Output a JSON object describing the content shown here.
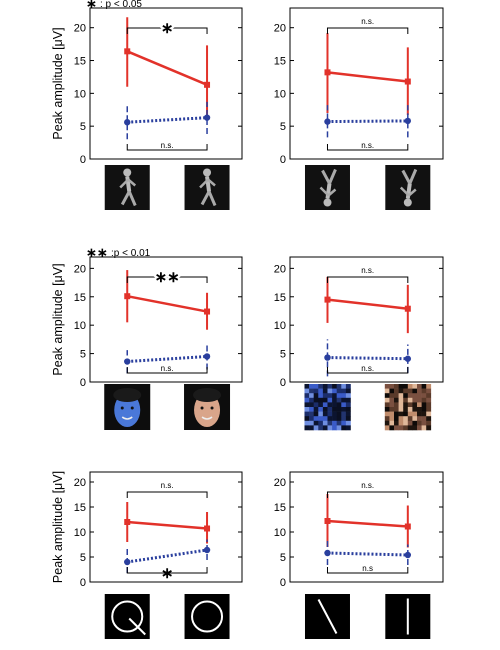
{
  "chart_data": [
    {
      "type": "line",
      "panel": "A-left",
      "ylabel": "Peak amplitude [μV]",
      "ylim": [
        0,
        23
      ],
      "yticks": [
        0,
        5,
        10,
        15,
        20
      ],
      "legend_note": ": p < 0.05",
      "legend_stars": "∗",
      "series": [
        {
          "style": "solid red",
          "values": [
            16.4,
            11.3
          ],
          "err_low": [
            11.0,
            6.5
          ],
          "err_high": [
            21.6,
            17.3
          ]
        },
        {
          "style": "dotted blue",
          "values": [
            5.6,
            6.3
          ],
          "err_low": [
            3.0,
            3.8
          ],
          "err_high": [
            8.2,
            8.7
          ]
        }
      ],
      "sig_top": "∗",
      "sig_bottom": "n.s.",
      "stimuli": [
        "upright-body-1",
        "upright-body-2"
      ]
    },
    {
      "type": "line",
      "panel": "A-right",
      "ylim": [
        0,
        23
      ],
      "yticks": [
        0,
        5,
        10,
        15,
        20
      ],
      "series": [
        {
          "style": "solid red",
          "values": [
            13.2,
            11.8
          ],
          "err_low": [
            7.0,
            6.7
          ],
          "err_high": [
            19.2,
            17.0
          ]
        },
        {
          "style": "dotted blue",
          "values": [
            5.7,
            5.8
          ],
          "err_low": [
            3.3,
            3.3
          ],
          "err_high": [
            8.2,
            8.2
          ]
        }
      ],
      "sig_top": "n.s.",
      "sig_bottom": "n.s.",
      "stimuli": [
        "inverted-body-1",
        "inverted-body-2"
      ]
    },
    {
      "type": "line",
      "panel": "B-left",
      "ylabel": "Peak amplitude [μV]",
      "ylim": [
        0,
        22
      ],
      "yticks": [
        0,
        5,
        10,
        15,
        20
      ],
      "legend_note": ":p < 0.01",
      "legend_stars": "∗∗",
      "series": [
        {
          "style": "solid red",
          "values": [
            15.1,
            12.4
          ],
          "err_low": [
            10.5,
            9.2
          ],
          "err_high": [
            19.7,
            15.7
          ]
        },
        {
          "style": "dotted blue",
          "values": [
            3.6,
            4.5
          ],
          "err_low": [
            1.5,
            2.2
          ],
          "err_high": [
            5.6,
            6.8
          ]
        }
      ],
      "sig_top": "∗∗",
      "sig_bottom": "n.s.",
      "stimuli": [
        "blue-face",
        "natural-face"
      ]
    },
    {
      "type": "line",
      "panel": "B-right",
      "ylim": [
        0,
        22
      ],
      "yticks": [
        0,
        5,
        10,
        15,
        20
      ],
      "series": [
        {
          "style": "solid red",
          "values": [
            14.5,
            12.9
          ],
          "err_low": [
            10.4,
            8.6
          ],
          "err_high": [
            18.5,
            17.1
          ]
        },
        {
          "style": "dotted blue",
          "values": [
            4.3,
            4.1
          ],
          "err_low": [
            1.0,
            1.6
          ],
          "err_high": [
            7.5,
            6.6
          ]
        }
      ],
      "sig_top": "n.s.",
      "sig_bottom": "n.s.",
      "stimuli": [
        "scrambled-blue",
        "scrambled-natural"
      ]
    },
    {
      "type": "line",
      "panel": "C-left",
      "ylabel": "Peak amplitude [μV]",
      "ylim": [
        0,
        22
      ],
      "yticks": [
        0,
        5,
        10,
        15,
        20
      ],
      "series": [
        {
          "style": "solid red",
          "values": [
            12.0,
            10.7
          ],
          "err_low": [
            8.0,
            7.7
          ],
          "err_high": [
            16.0,
            14.0
          ]
        },
        {
          "style": "dotted blue",
          "values": [
            4.0,
            6.4
          ],
          "err_low": [
            1.8,
            4.4
          ],
          "err_high": [
            6.6,
            8.5
          ]
        }
      ],
      "sig_top": "n.s.",
      "sig_bottom": "∗",
      "stimuli": [
        "letter-Q",
        "letter-O"
      ]
    },
    {
      "type": "line",
      "panel": "C-right",
      "ylim": [
        0,
        22
      ],
      "yticks": [
        0,
        5,
        10,
        15,
        20
      ],
      "series": [
        {
          "style": "solid red",
          "values": [
            12.2,
            11.1
          ],
          "err_low": [
            7.0,
            6.9
          ],
          "err_high": [
            17.6,
            15.3
          ]
        },
        {
          "style": "dotted blue",
          "values": [
            5.8,
            5.4
          ],
          "err_low": [
            3.4,
            3.4
          ],
          "err_high": [
            8.2,
            7.5
          ]
        }
      ],
      "sig_top": "n.s.",
      "sig_bottom": "n.s",
      "stimuli": [
        "oblique-line",
        "vertical-line"
      ]
    }
  ],
  "colors": {
    "red": "#e2322a",
    "blue": "#2a3f9e",
    "axis": "#000000"
  }
}
